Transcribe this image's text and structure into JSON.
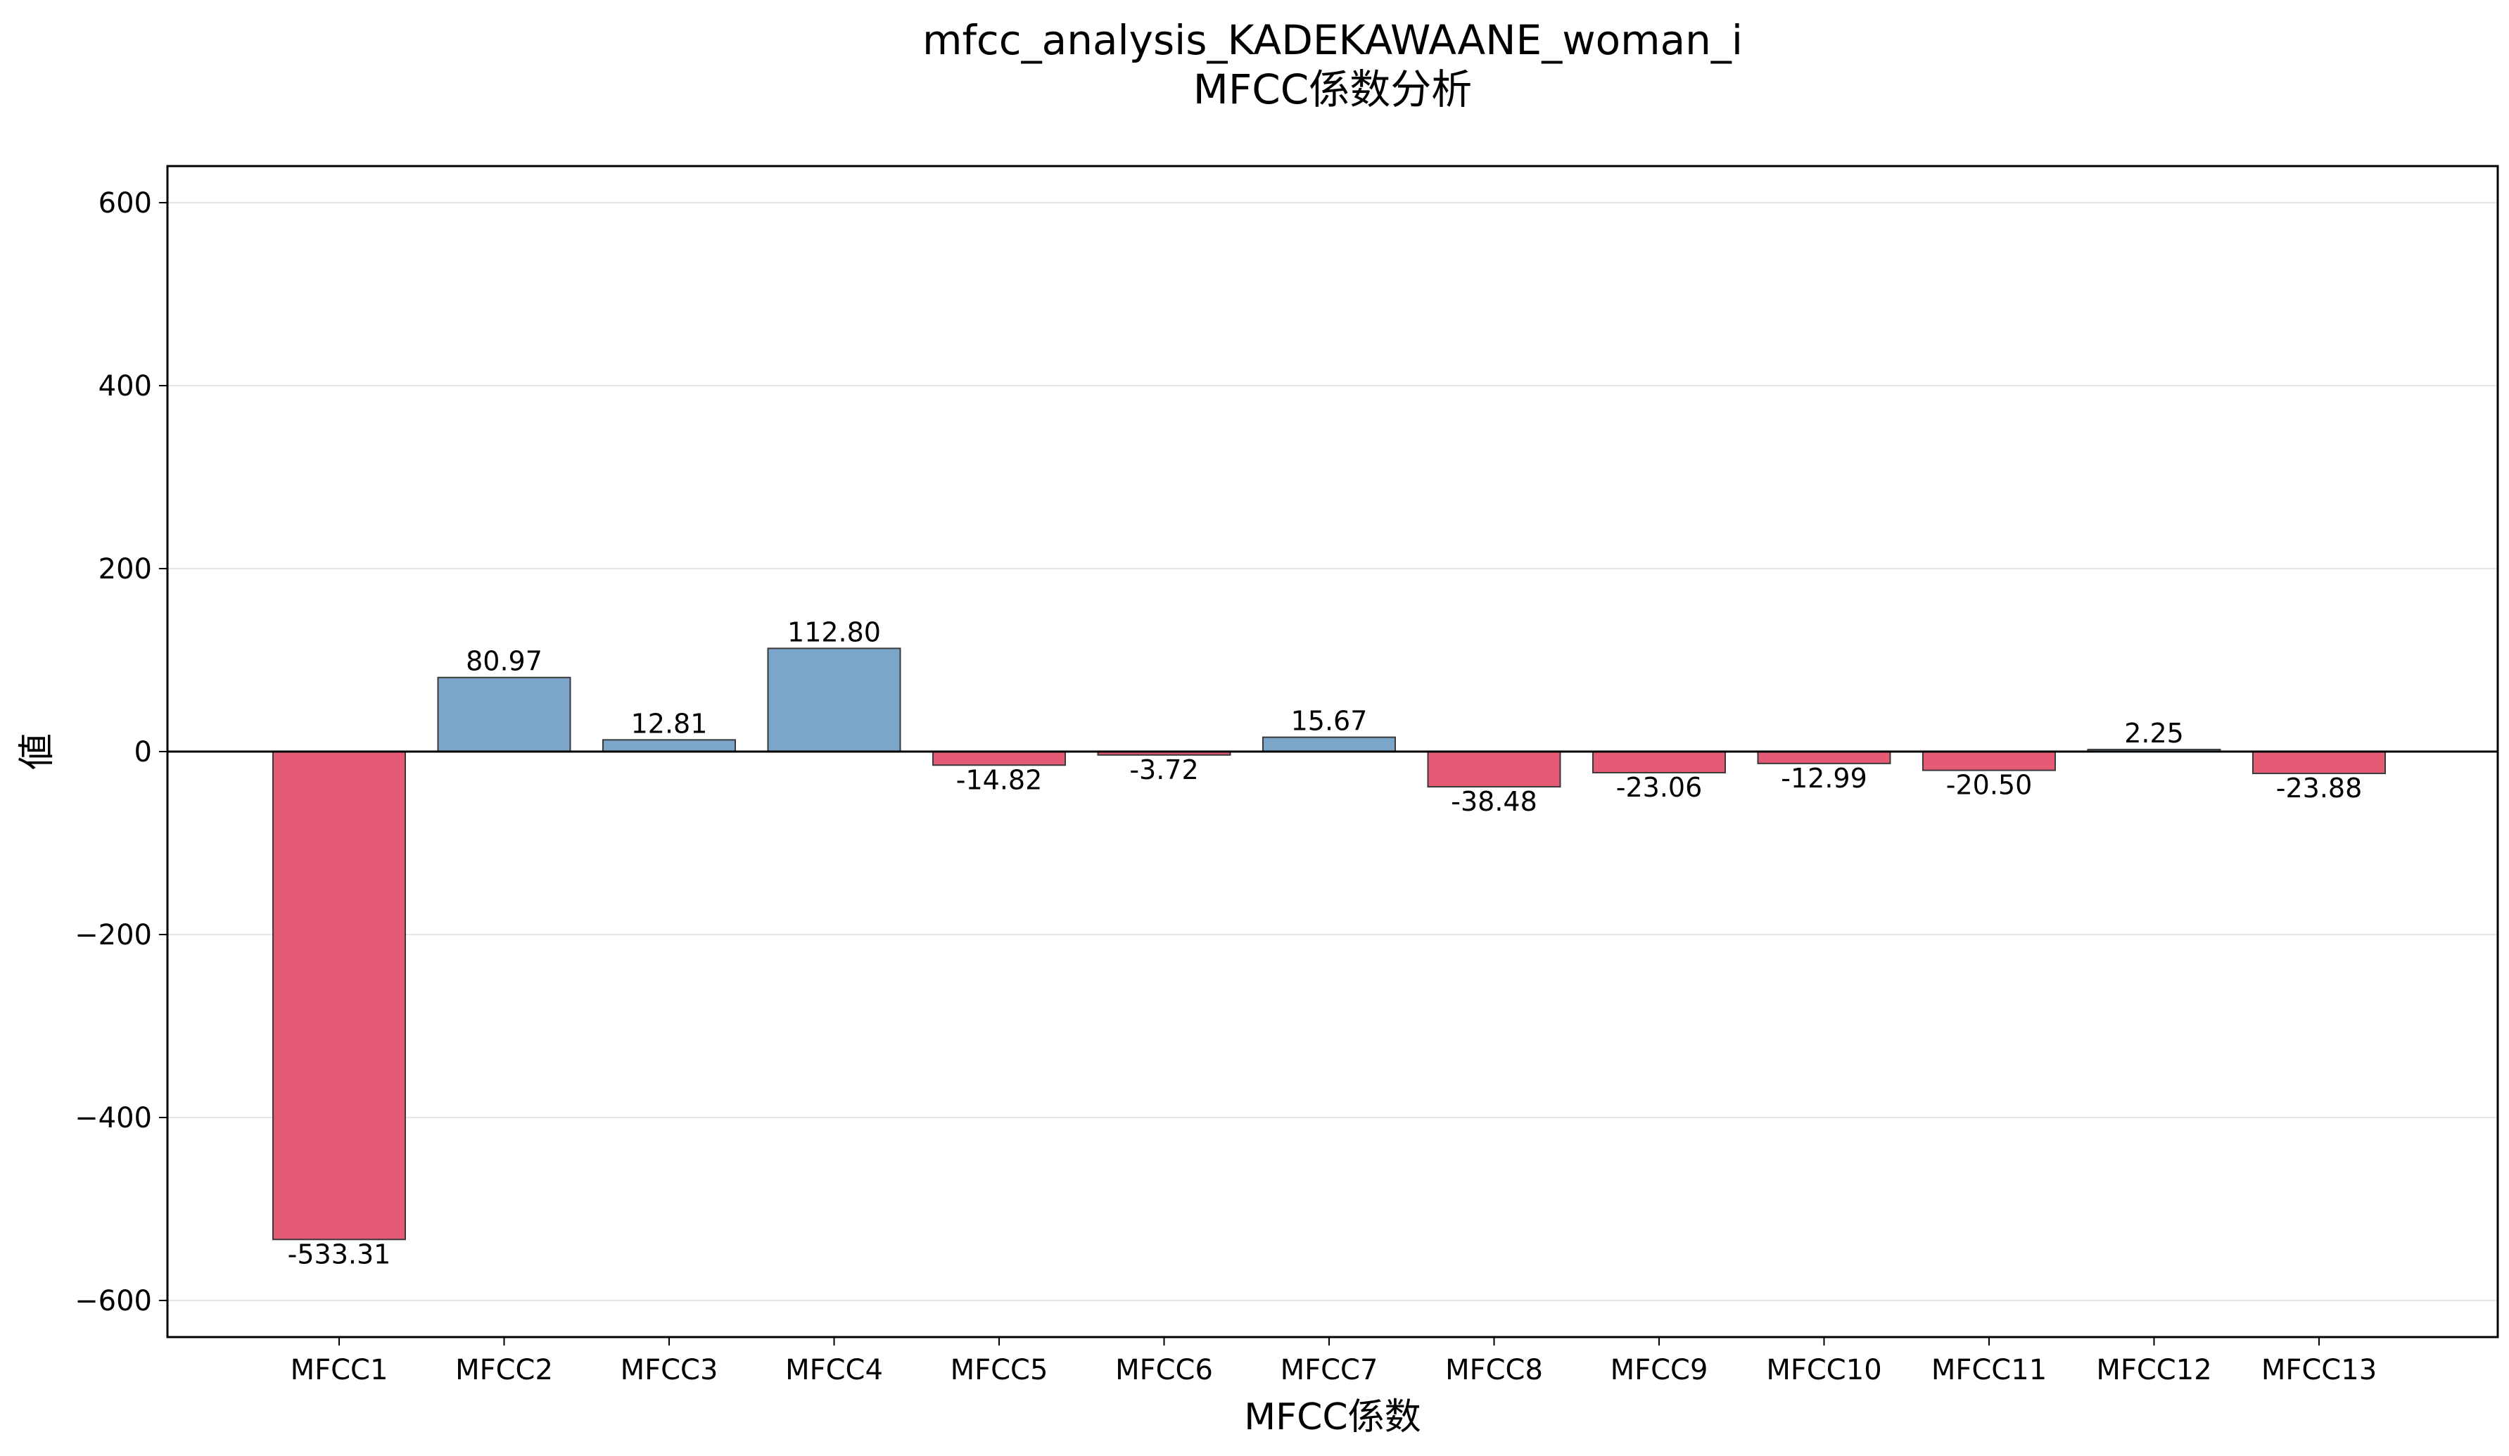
{
  "chart_data": {
    "type": "bar",
    "title": "mfcc_analysis_KADEKAWAANE_woman_i",
    "subtitle": "MFCC係数分析",
    "xlabel": "MFCC係数",
    "ylabel": "値",
    "ylim": [
      -640,
      640
    ],
    "yticks": [
      600,
      400,
      200,
      0,
      -200,
      -400,
      -600
    ],
    "ytick_labels": [
      "600",
      "400",
      "200",
      "0",
      "−200",
      "−400",
      "−600"
    ],
    "grid": "horizontal",
    "categories": [
      "MFCC1",
      "MFCC2",
      "MFCC3",
      "MFCC4",
      "MFCC5",
      "MFCC6",
      "MFCC7",
      "MFCC8",
      "MFCC9",
      "MFCC10",
      "MFCC11",
      "MFCC12",
      "MFCC13"
    ],
    "values": [
      -533.31,
      80.97,
      12.81,
      112.8,
      -14.82,
      -3.72,
      15.67,
      -38.48,
      -23.06,
      -12.99,
      -20.5,
      2.25,
      -23.88
    ],
    "value_labels": [
      "-533.31",
      "80.97",
      "12.81",
      "112.80",
      "-14.82",
      "-3.72",
      "15.67",
      "-38.48",
      "-23.06",
      "-12.99",
      "-20.50",
      "2.25",
      "-23.88"
    ],
    "colors": {
      "positive": "#7ca6c9",
      "negative": "#e55a75",
      "edge": "#3a3a3a",
      "zero_line": "#000000",
      "grid": "#e6e6e6"
    }
  }
}
